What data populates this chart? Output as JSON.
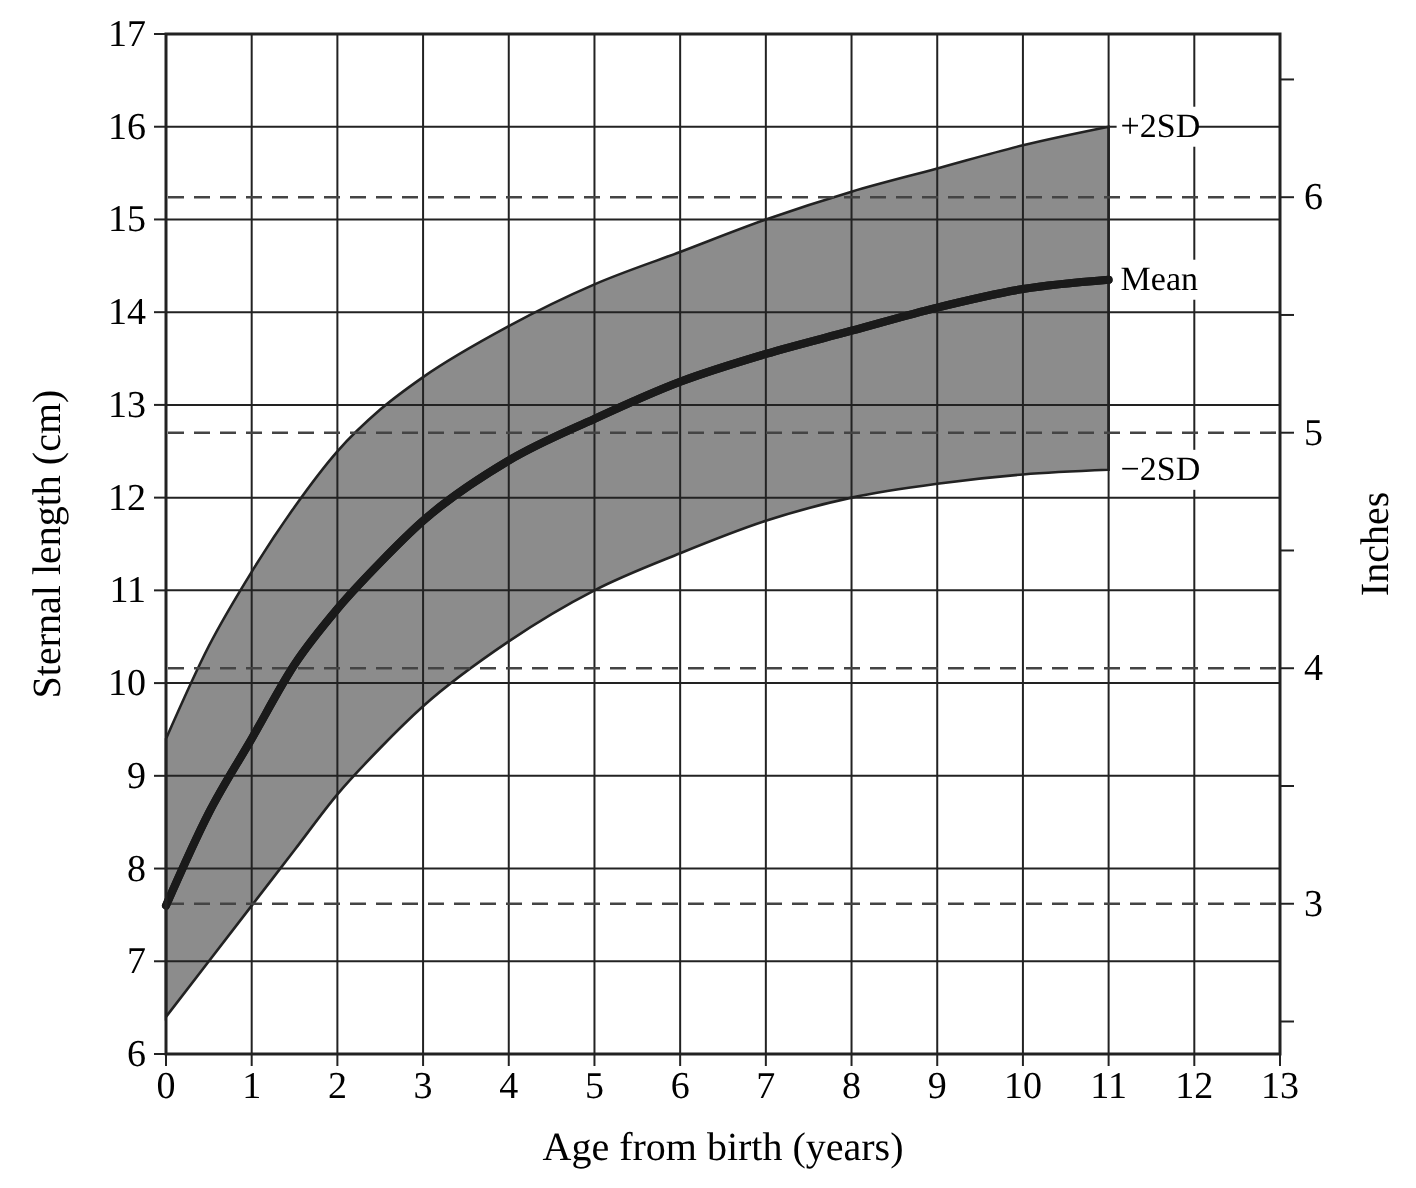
{
  "chart_data": {
    "type": "line",
    "xlabel": "Age from birth (years)",
    "ylabel": "Sternal length (cm)",
    "y2label": "Inches",
    "x": [
      0,
      0.5,
      1,
      1.5,
      2,
      2.5,
      3,
      4,
      5,
      6,
      7,
      8,
      9,
      10,
      11
    ],
    "series": [
      {
        "color": "#1a1a1a",
        "values": [
          7.6,
          8.6,
          9.4,
          10.2,
          10.8,
          11.3,
          11.75,
          12.4,
          12.85,
          13.25,
          13.55,
          13.8,
          14.05,
          14.25,
          14.35
        ],
        "lower": [
          6.4,
          7.0,
          7.6,
          8.2,
          8.8,
          9.3,
          9.75,
          10.45,
          11.0,
          11.4,
          11.75,
          12.0,
          12.15,
          12.25,
          12.3
        ],
        "upper": [
          9.4,
          10.4,
          11.2,
          11.9,
          12.5,
          12.95,
          13.3,
          13.85,
          14.3,
          14.65,
          15.0,
          15.3,
          15.55,
          15.8,
          16.0
        ]
      }
    ],
    "xlim": [
      0,
      13
    ],
    "xticks": [
      0,
      1,
      2,
      3,
      4,
      5,
      6,
      7,
      8,
      9,
      10,
      11,
      12,
      13
    ],
    "ylim": [
      6,
      17
    ],
    "yticks": [
      6,
      7,
      8,
      9,
      10,
      11,
      12,
      13,
      14,
      15,
      16,
      17
    ],
    "y2lim": [
      2.362,
      6.693
    ],
    "y2ticks": [
      {
        "value": 2.5,
        "label": null
      },
      3,
      {
        "value": 3.5,
        "label": null
      },
      4,
      {
        "value": 4.5,
        "label": null
      },
      5,
      {
        "value": 5.5,
        "label": null
      },
      6,
      {
        "value": 6.5,
        "label": null
      }
    ],
    "annotations": [
      {
        "text": "+2SD",
        "y": 16.0
      },
      {
        "text": "Mean",
        "y": 14.35
      },
      {
        "text": "−2SD",
        "y": 12.3
      }
    ],
    "grid": true
  }
}
